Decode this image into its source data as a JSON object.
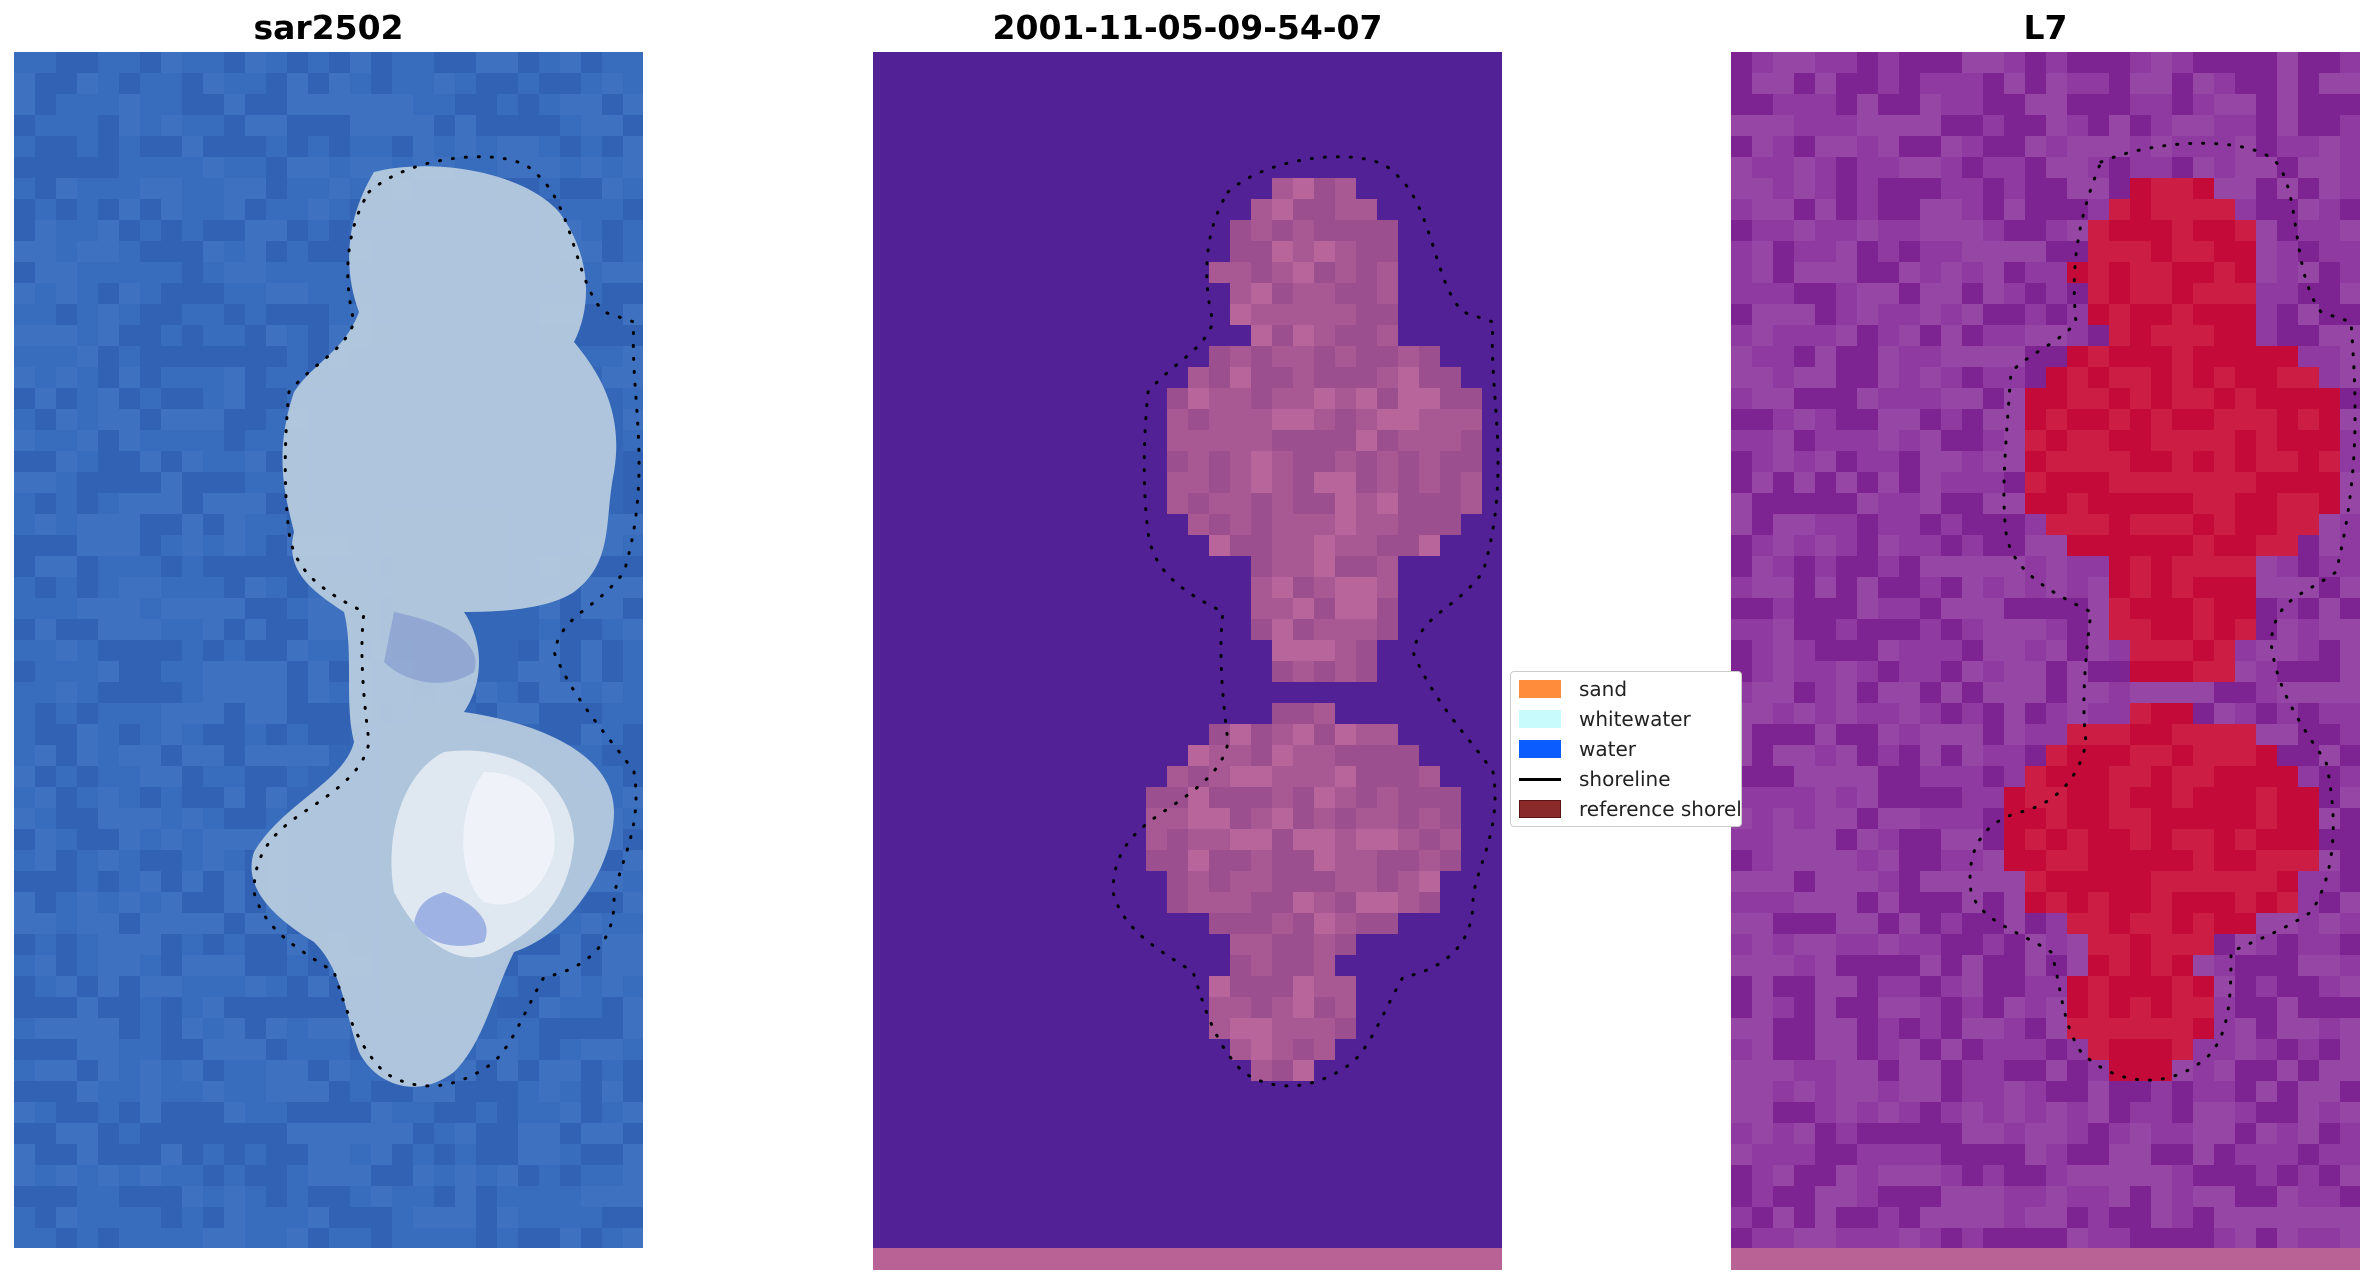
{
  "panels": {
    "left": {
      "title": "sar2502"
    },
    "middle": {
      "title": "2001-11-05-09-54-07"
    },
    "right": {
      "title": "L7"
    }
  },
  "legend": {
    "items": [
      {
        "label": "sand",
        "color": "#ff8c3a",
        "kind": "patch"
      },
      {
        "label": "whitewater",
        "color": "#c8fbfb",
        "kind": "patch"
      },
      {
        "label": "water",
        "color": "#0a5cff",
        "kind": "patch"
      },
      {
        "label": "shoreline",
        "color": "#000000",
        "kind": "line"
      },
      {
        "label": "reference shoreline",
        "color": "#8b2a2a",
        "kind": "patch"
      }
    ]
  },
  "colors": {
    "water_rgb": "#3567b8",
    "island_rgb": "#c7d8e6",
    "class_water": "#522196",
    "class_sand": "#b05c96",
    "index_low": "#8a2a9a",
    "index_high": "#c8002e",
    "bottom_strip": "#b96296",
    "shoreline": "#000000"
  }
}
